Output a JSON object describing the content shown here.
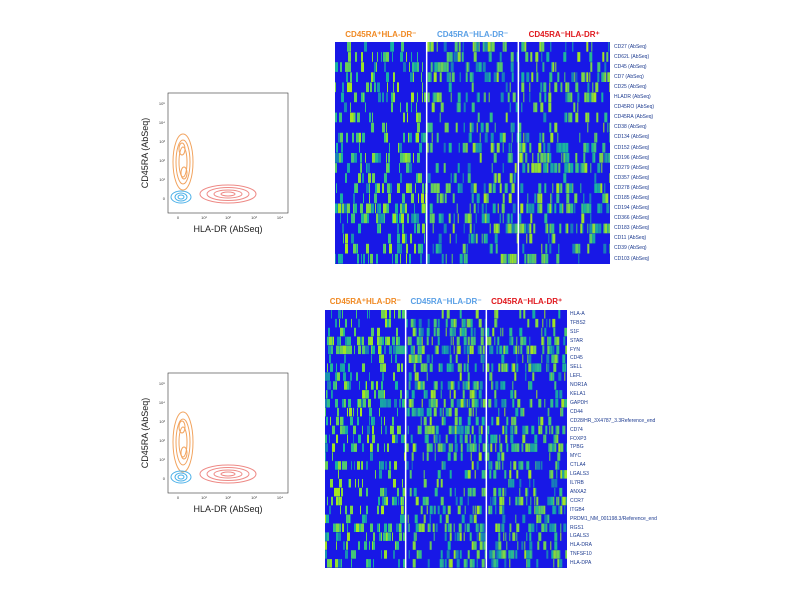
{
  "colors": {
    "group1": "#f08a24",
    "group2": "#5aa0e6",
    "group3": "#e0191e",
    "heatLow": "#1818e6",
    "heatMid": "#18b4a0",
    "heatHigh": "#a8e61e",
    "contourOrange": "#f2a45f",
    "contourBlue": "#4bb0e8",
    "contourRed": "#ee8a86"
  },
  "panels": [
    {
      "contour": {
        "xlabel": "HLA-DR (AbSeq)",
        "ylabel": "CD45RA (AbSeq)",
        "xticks": [
          "0",
          "10¹",
          "10²",
          "10³",
          "10⁴"
        ],
        "yticks": [
          "0",
          "10¹",
          "10²",
          "10³",
          "10⁴",
          "10⁵"
        ]
      },
      "groups": [
        "CD45RA⁺HLA-DR⁻",
        "CD45RA⁻HLA-DR⁻",
        "CD45RA⁻HLA-DR⁺"
      ],
      "rows": [
        "CD27 (AbSeq)",
        "CD62L (AbSeq)",
        "CD45 (AbSeq)",
        "CD7 (AbSeq)",
        "CD25 (AbSeq)",
        "HLADR (AbSeq)",
        "CD45RO (AbSeq)",
        "CD45RA (AbSeq)",
        "CD38 (AbSeq)",
        "CD134 (AbSeq)",
        "CD152 (AbSeq)",
        "CD196 (AbSeq)",
        "CD279 (AbSeq)",
        "CD357 (AbSeq)",
        "CD278 (AbSeq)",
        "CD185 (AbSeq)",
        "CD194 (AbSeq)",
        "CD366 (AbSeq)",
        "CD183 (AbSeq)",
        "CD11 (AbSeq)",
        "CD39 (AbSeq)",
        "CD103 (AbSeq)"
      ]
    },
    {
      "contour": {
        "xlabel": "HLA-DR (AbSeq)",
        "ylabel": "CD45RA (AbSeq)",
        "xticks": [
          "0",
          "10¹",
          "10²",
          "10³",
          "10⁴"
        ],
        "yticks": [
          "0",
          "10¹",
          "10²",
          "10³",
          "10⁴",
          "10⁵"
        ]
      },
      "groups": [
        "CD45RA⁺HLA-DR⁻",
        "CD45RA⁻HLA-DR⁻",
        "CD45RA⁻HLA-DR⁺"
      ],
      "rows": [
        "HLA-A",
        "TFBS2",
        "S1F",
        "STAR",
        "FYN",
        "CD45",
        "SELL",
        "LEFL",
        "NOR1A",
        "KELA1",
        "GAPDH",
        "CD44",
        "CD28/HR_3X4787_3.3Reference_end",
        "CD74",
        "FOXP3",
        "TPBG",
        "MYC",
        "CTLA4",
        "LGALS3",
        "IL7RB",
        "ANXA2",
        "CCR7",
        "ITGB4",
        "PRDM1_NM_001198.3/Reference_end",
        "RGS1",
        "LGALS3",
        "HLA-DRA",
        "TNFSF10",
        "HLA-DPA"
      ]
    }
  ]
}
